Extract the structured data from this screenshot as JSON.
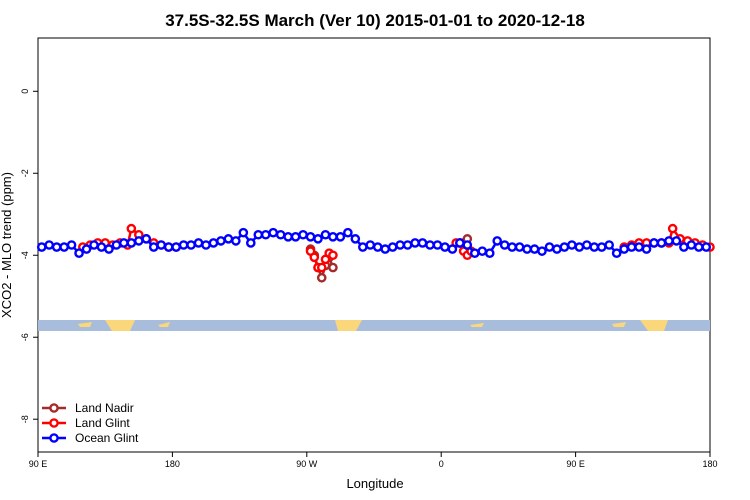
{
  "chart_data": {
    "type": "line",
    "title": "37.5S-32.5S March (Ver 10)   2015-01-01 to 2020-12-18",
    "xlabel": "Longitude",
    "ylabel": "XCO2 - MLO trend (ppm)",
    "xlim": [
      90,
      450
    ],
    "ylim": [
      -8.8,
      1.3
    ],
    "x_ticks": [
      {
        "value": 90,
        "label": "90 E"
      },
      {
        "value": 162,
        "label": "180"
      },
      {
        "value": 234,
        "label": "90 W"
      },
      {
        "value": 306,
        "label": "0"
      },
      {
        "value": 378,
        "label": "90 E"
      },
      {
        "value": 450,
        "label": "180"
      }
    ],
    "y_ticks": [
      0,
      -2,
      -4,
      -6,
      -8
    ],
    "grid": false,
    "legend_position": "bottom-left",
    "colors": {
      "land_nadir": "#a52a2a",
      "land_glint": "#ff0000",
      "ocean_glint": "#0000ff",
      "map_ocean": "#a8bddc",
      "map_land": "#f9d77a"
    },
    "series": [
      {
        "name": "Land Nadir",
        "color": "#a52a2a",
        "x": [
          236,
          238,
          240,
          242,
          244,
          246,
          248,
          316,
          318,
          320
        ],
        "y": [
          -3.85,
          -4.0,
          -4.3,
          -4.55,
          -4.25,
          -4.05,
          -4.3,
          -3.7,
          -3.7,
          -3.6
        ]
      },
      {
        "name": "Land Glint",
        "color": "#ff0000",
        "x": [
          114,
          118,
          122,
          126,
          130,
          134,
          138,
          140,
          144,
          148,
          152,
          156,
          160,
          164,
          236,
          238,
          240,
          242,
          244,
          246,
          248,
          314,
          316,
          318,
          320,
          322,
          404,
          408,
          412,
          416,
          420,
          424,
          428,
          430,
          434,
          438,
          442,
          446,
          450
        ],
        "y": [
          -3.8,
          -3.75,
          -3.7,
          -3.7,
          -3.75,
          -3.7,
          -3.75,
          -3.35,
          -3.5,
          -3.6,
          -3.7,
          -3.75,
          -3.8,
          -3.8,
          -3.9,
          -4.05,
          -4.3,
          -4.3,
          -4.1,
          -3.95,
          -4.0,
          -3.7,
          -3.7,
          -3.9,
          -4.0,
          -3.9,
          -3.8,
          -3.75,
          -3.7,
          -3.7,
          -3.7,
          -3.7,
          -3.7,
          -3.35,
          -3.6,
          -3.65,
          -3.7,
          -3.75,
          -3.8
        ]
      },
      {
        "name": "Ocean Glint",
        "color": "#0000ff",
        "x": [
          92,
          96,
          100,
          104,
          108,
          112,
          116,
          120,
          124,
          128,
          132,
          136,
          140,
          144,
          148,
          152,
          156,
          160,
          164,
          168,
          172,
          176,
          180,
          184,
          188,
          192,
          196,
          200,
          204,
          208,
          212,
          216,
          220,
          224,
          228,
          232,
          236,
          240,
          244,
          248,
          252,
          256,
          260,
          264,
          268,
          272,
          276,
          280,
          284,
          288,
          292,
          296,
          300,
          304,
          308,
          312,
          316,
          320,
          324,
          328,
          332,
          336,
          340,
          344,
          348,
          352,
          356,
          360,
          364,
          368,
          372,
          376,
          380,
          384,
          388,
          392,
          396,
          400,
          404,
          408,
          412,
          416,
          420,
          424,
          428,
          432,
          436,
          440,
          444,
          448
        ],
        "y": [
          -3.8,
          -3.75,
          -3.8,
          -3.8,
          -3.75,
          -3.95,
          -3.85,
          -3.75,
          -3.8,
          -3.85,
          -3.75,
          -3.7,
          -3.7,
          -3.65,
          -3.6,
          -3.8,
          -3.75,
          -3.8,
          -3.8,
          -3.75,
          -3.75,
          -3.7,
          -3.75,
          -3.7,
          -3.65,
          -3.6,
          -3.65,
          -3.45,
          -3.7,
          -3.5,
          -3.5,
          -3.45,
          -3.5,
          -3.55,
          -3.55,
          -3.5,
          -3.55,
          -3.6,
          -3.5,
          -3.55,
          -3.55,
          -3.45,
          -3.6,
          -3.8,
          -3.75,
          -3.8,
          -3.85,
          -3.8,
          -3.75,
          -3.75,
          -3.7,
          -3.7,
          -3.75,
          -3.75,
          -3.8,
          -3.85,
          -3.7,
          -3.75,
          -3.95,
          -3.9,
          -3.95,
          -3.65,
          -3.75,
          -3.8,
          -3.8,
          -3.85,
          -3.85,
          -3.9,
          -3.8,
          -3.85,
          -3.8,
          -3.75,
          -3.8,
          -3.75,
          -3.8,
          -3.8,
          -3.75,
          -3.95,
          -3.85,
          -3.8,
          -3.8,
          -3.85,
          -3.7,
          -3.7,
          -3.65,
          -3.65,
          -3.8,
          -3.75,
          -3.8,
          -3.8
        ]
      }
    ],
    "legend": [
      {
        "name": "Land Nadir",
        "color": "#a52a2a"
      },
      {
        "name": "Land Glint",
        "color": "#ff0000"
      },
      {
        "name": "Ocean Glint",
        "color": "#0000ff"
      }
    ]
  }
}
